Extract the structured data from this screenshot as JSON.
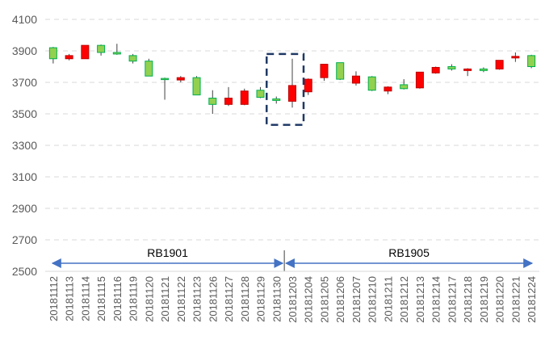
{
  "chart_data": {
    "type": "candlestick",
    "ylim": [
      2500,
      4100
    ],
    "yticks": [
      "2500",
      "2700",
      "2900",
      "3100",
      "3300",
      "3500",
      "3700",
      "3900",
      "4100"
    ],
    "grid": "horizontal-dashed",
    "categories": [
      "20181112",
      "20181113",
      "20181114",
      "20181115",
      "20181116",
      "20181119",
      "20181120",
      "20181121",
      "20181122",
      "20181123",
      "20181126",
      "20181127",
      "20181128",
      "20181129",
      "20181130",
      "20181203",
      "20181204",
      "20181205",
      "20181206",
      "20181207",
      "20181210",
      "20181211",
      "20181212",
      "20181213",
      "20181214",
      "20181217",
      "20181218",
      "20181219",
      "20181220",
      "20181221",
      "20181224"
    ],
    "candles": [
      {
        "open": 3920,
        "close": 3850,
        "high": 3925,
        "low": 3820
      },
      {
        "open": 3850,
        "close": 3870,
        "high": 3880,
        "low": 3840
      },
      {
        "open": 3850,
        "close": 3935,
        "high": 3935,
        "low": 3850
      },
      {
        "open": 3935,
        "close": 3890,
        "high": 3940,
        "low": 3870
      },
      {
        "open": 3890,
        "close": 3880,
        "high": 3945,
        "low": 3875
      },
      {
        "open": 3870,
        "close": 3835,
        "high": 3880,
        "low": 3820
      },
      {
        "open": 3835,
        "close": 3740,
        "high": 3850,
        "low": 3740
      },
      {
        "open": 3725,
        "close": 3720,
        "high": 3730,
        "low": 3590
      },
      {
        "open": 3715,
        "close": 3730,
        "high": 3740,
        "low": 3700
      },
      {
        "open": 3730,
        "close": 3620,
        "high": 3740,
        "low": 3620
      },
      {
        "open": 3600,
        "close": 3560,
        "high": 3650,
        "low": 3500
      },
      {
        "open": 3560,
        "close": 3600,
        "high": 3670,
        "low": 3550
      },
      {
        "open": 3560,
        "close": 3645,
        "high": 3660,
        "low": 3555
      },
      {
        "open": 3650,
        "close": 3605,
        "high": 3670,
        "low": 3600
      },
      {
        "open": 3595,
        "close": 3585,
        "high": 3610,
        "low": 3565
      },
      {
        "open": 3580,
        "close": 3680,
        "high": 3850,
        "low": 3540
      },
      {
        "open": 3640,
        "close": 3720,
        "high": 3725,
        "low": 3620
      },
      {
        "open": 3730,
        "close": 3815,
        "high": 3815,
        "low": 3710
      },
      {
        "open": 3825,
        "close": 3720,
        "high": 3825,
        "low": 3715
      },
      {
        "open": 3695,
        "close": 3740,
        "high": 3770,
        "low": 3680
      },
      {
        "open": 3735,
        "close": 3650,
        "high": 3740,
        "low": 3645
      },
      {
        "open": 3645,
        "close": 3670,
        "high": 3675,
        "low": 3625
      },
      {
        "open": 3685,
        "close": 3660,
        "high": 3720,
        "low": 3655
      },
      {
        "open": 3665,
        "close": 3765,
        "high": 3765,
        "low": 3660
      },
      {
        "open": 3760,
        "close": 3795,
        "high": 3800,
        "low": 3755
      },
      {
        "open": 3800,
        "close": 3785,
        "high": 3815,
        "low": 3775
      },
      {
        "open": 3775,
        "close": 3785,
        "high": 3790,
        "low": 3740
      },
      {
        "open": 3785,
        "close": 3775,
        "high": 3795,
        "low": 3765
      },
      {
        "open": 3785,
        "close": 3840,
        "high": 3840,
        "low": 3780
      },
      {
        "open": 3855,
        "close": 3865,
        "high": 3890,
        "low": 3830
      },
      {
        "open": 3870,
        "close": 3800,
        "high": 3875,
        "low": 3790
      }
    ],
    "colors": {
      "up_fill": "#ff0000",
      "up_stroke": "#c00000",
      "down_fill": "#92d050",
      "down_stroke": "#00b050",
      "grid": "#d9d9d9",
      "axis_text": "#595959",
      "arrow": "#4472c4",
      "highlight_box": "#1f3864"
    },
    "annotations": {
      "contracts": [
        {
          "label": "RB1901",
          "from": "20181112",
          "to": "20181130"
        },
        {
          "label": "RB1905",
          "from": "20181203",
          "to": "20181224"
        }
      ],
      "highlight": {
        "categories": [
          "20181130",
          "20181203"
        ],
        "low": 3430,
        "high": 3880
      }
    }
  }
}
